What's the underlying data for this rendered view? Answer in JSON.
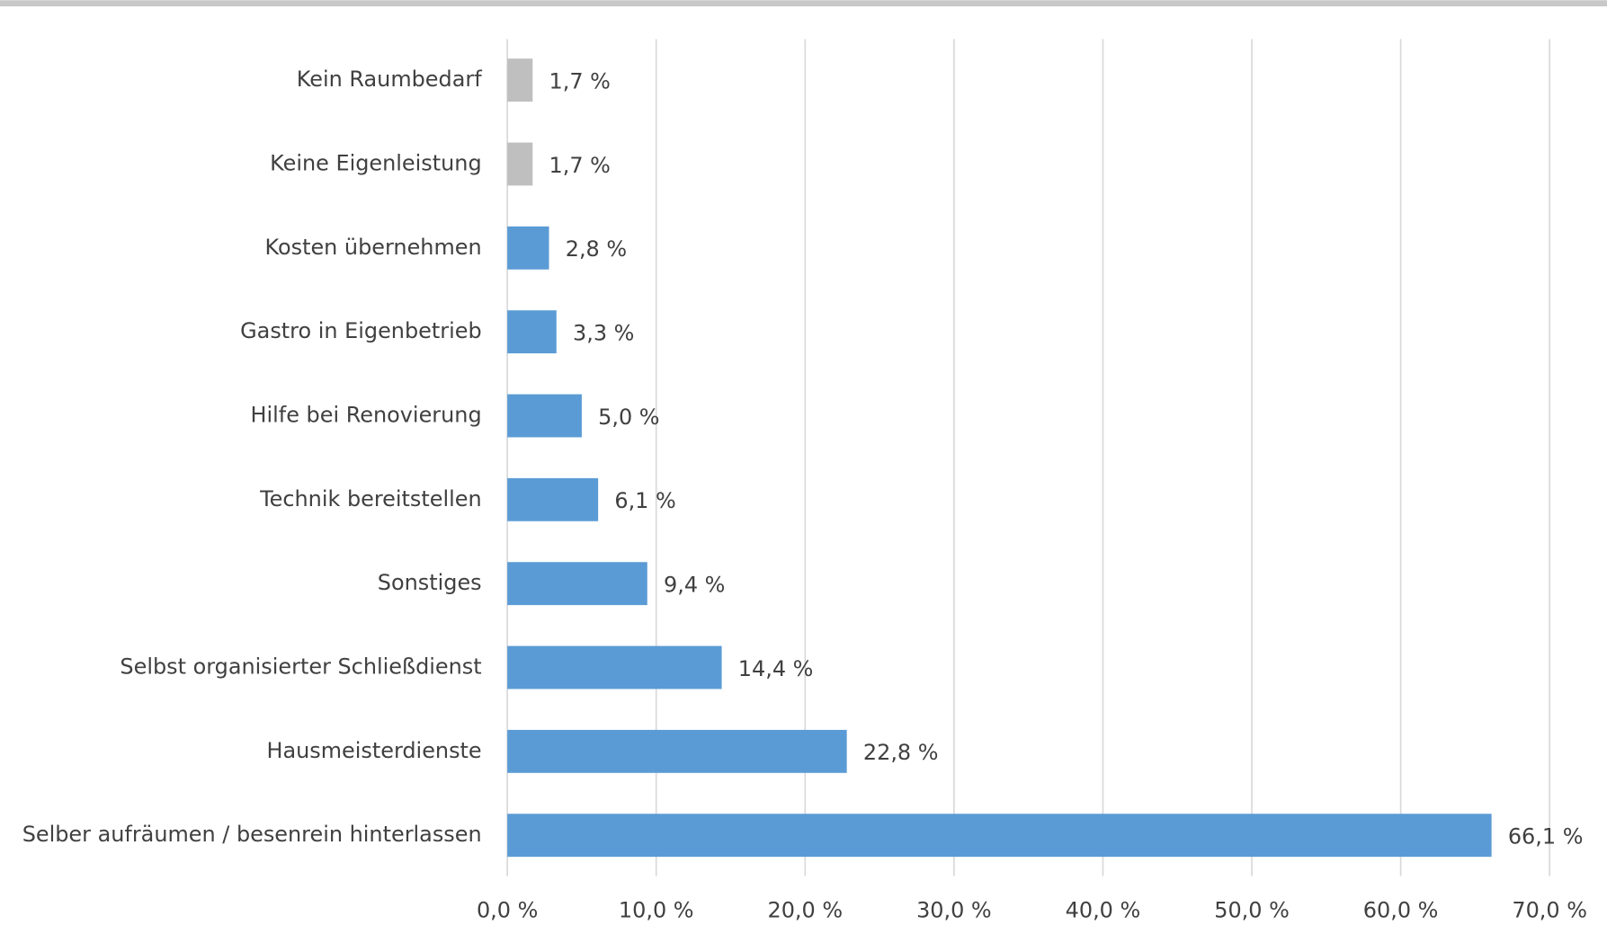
{
  "chart_data": {
    "type": "bar",
    "orientation": "horizontal",
    "categories": [
      "Kein Raumbedarf",
      "Keine Eigenleistung",
      "Kosten übernehmen",
      "Gastro in Eigenbetrieb",
      "Hilfe bei Renovierung",
      "Technik bereitstellen",
      "Sonstiges",
      "Selbst organisierter Schließdienst",
      "Hausmeisterdienste",
      "Selber aufräumen / besenrein hinterlassen"
    ],
    "values": [
      1.7,
      1.7,
      2.8,
      3.3,
      5.0,
      6.1,
      9.4,
      14.4,
      22.8,
      66.1
    ],
    "value_labels": [
      "1,7 %",
      "1,7 %",
      "2,8 %",
      "3,3 %",
      "5,0 %",
      "6,1 %",
      "9,4 %",
      "14,4 %",
      "22,8 %",
      "66,1 %"
    ],
    "colors": [
      "#bfbfbf",
      "#bfbfbf",
      "#5b9bd5",
      "#5b9bd5",
      "#5b9bd5",
      "#5b9bd5",
      "#5b9bd5",
      "#5b9bd5",
      "#5b9bd5",
      "#5b9bd5"
    ],
    "xlim": [
      0,
      70
    ],
    "xticks": [
      {
        "value": 0,
        "label": "0,0 %"
      },
      {
        "value": 10,
        "label": "10,0 %"
      },
      {
        "value": 20,
        "label": "20,0 %"
      },
      {
        "value": 30,
        "label": "30,0 %"
      },
      {
        "value": 40,
        "label": "40,0 %"
      },
      {
        "value": 50,
        "label": "50,0 %"
      },
      {
        "value": 60,
        "label": "60,0 %"
      },
      {
        "value": 70,
        "label": "70,0 %"
      }
    ],
    "grid": true
  }
}
